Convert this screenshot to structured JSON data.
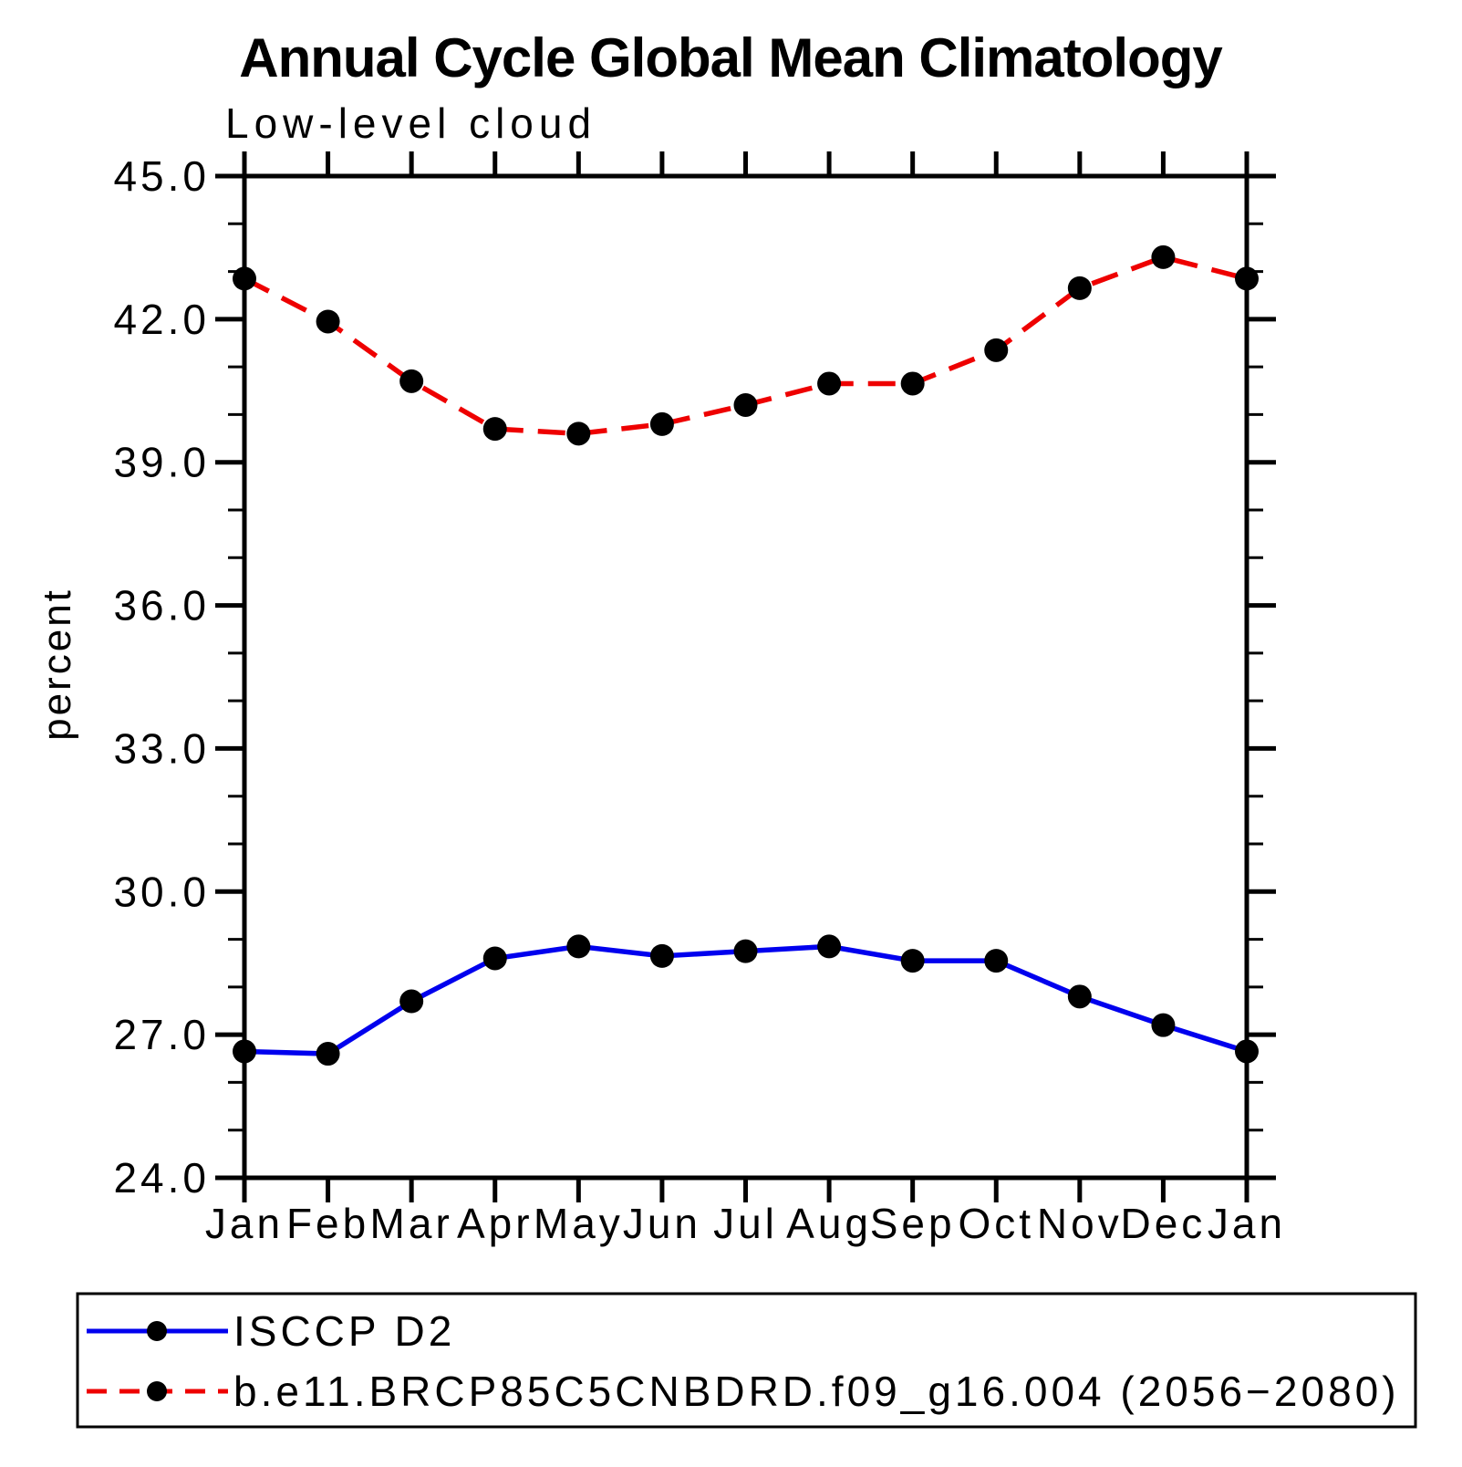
{
  "title": "Annual Cycle Global Mean Climatology",
  "subtitle": "Low-level cloud",
  "ylabel": "percent",
  "chart_data": {
    "type": "line",
    "categories": [
      "Jan",
      "Feb",
      "Mar",
      "Apr",
      "May",
      "Jun",
      "Jul",
      "Aug",
      "Sep",
      "Oct",
      "Nov",
      "Dec",
      "Jan"
    ],
    "series": [
      {
        "name": "ISCCP D2",
        "color": "#0000ee",
        "line_style": "solid",
        "marker": "filled-circle",
        "marker_color": "#000000",
        "values": [
          26.65,
          26.6,
          27.7,
          28.6,
          28.85,
          28.65,
          28.75,
          28.85,
          28.55,
          28.55,
          27.8,
          27.2,
          26.65
        ]
      },
      {
        "name": "b.e11.BRCP85C5CNBDRD.f09_g16.004 (2056−2080)",
        "color": "#ee0000",
        "line_style": "dashed",
        "marker": "filled-circle",
        "marker_color": "#000000",
        "values": [
          42.85,
          41.95,
          40.7,
          39.7,
          39.6,
          39.8,
          40.2,
          40.65,
          40.65,
          41.35,
          42.65,
          43.3,
          42.85
        ]
      }
    ],
    "ylim": [
      24.0,
      45.0
    ],
    "ytick_major_step": 3.0,
    "ytick_minor_step": 1.0,
    "ytick_major_labels": [
      "24.0",
      "27.0",
      "30.0",
      "33.0",
      "36.0",
      "39.0",
      "42.0",
      "45.0"
    ],
    "grid": false,
    "legend_position": "bottom",
    "axis_color": "#000000",
    "background_color": "#ffffff"
  }
}
